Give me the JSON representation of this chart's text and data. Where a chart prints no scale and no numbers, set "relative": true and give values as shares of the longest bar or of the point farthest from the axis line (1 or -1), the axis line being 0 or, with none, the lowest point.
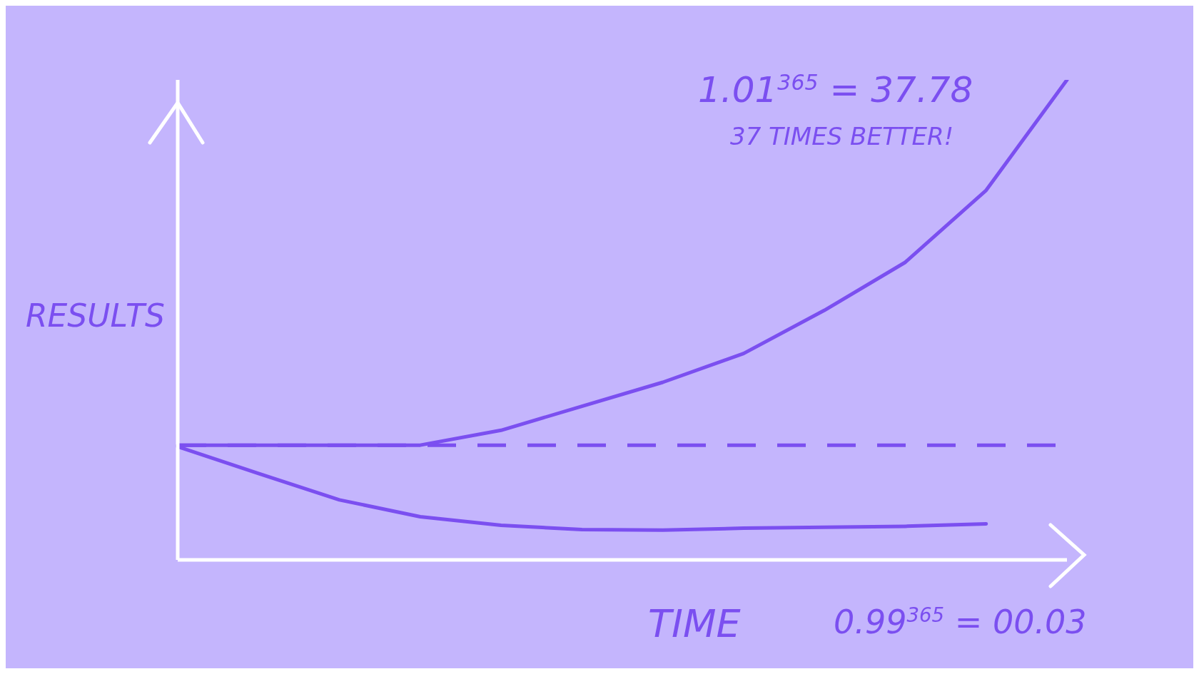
{
  "chart_data": {
    "type": "line",
    "relative": true,
    "xlabel": "TIME",
    "ylabel": "RESULTS",
    "annotations": [
      "1.01$^{365}$ = 37.78",
      "37 TIMES BETTER!",
      "0.99$^{365}$ = 00.03"
    ],
    "categories": [
      null,
      null,
      null,
      null,
      null,
      null,
      null,
      null,
      null,
      null,
      null,
      null
    ],
    "series": [
      {
        "color": "#7b4ff0",
        "values": [
          0.239,
          0.239,
          0.239,
          0.239,
          0.27,
          0.32,
          0.37,
          0.43,
          0.52,
          0.62,
          0.77,
          1
        ]
      },
      {
        "color": "#7b4ff0",
        "values": [
          0.236,
          0.18,
          0.125,
          0.09,
          0.072,
          0.063,
          0.062,
          0.066,
          0.068,
          0.07,
          0.075,
          null
        ]
      }
    ],
    "ref_lines": [
      {
        "axis": "y",
        "value": 0.239,
        "color": "#7b4ff0",
        "line_style": "dashed"
      }
    ],
    "marker": "none",
    "line_style": "solid",
    "legend": false,
    "grid": false
  }
}
